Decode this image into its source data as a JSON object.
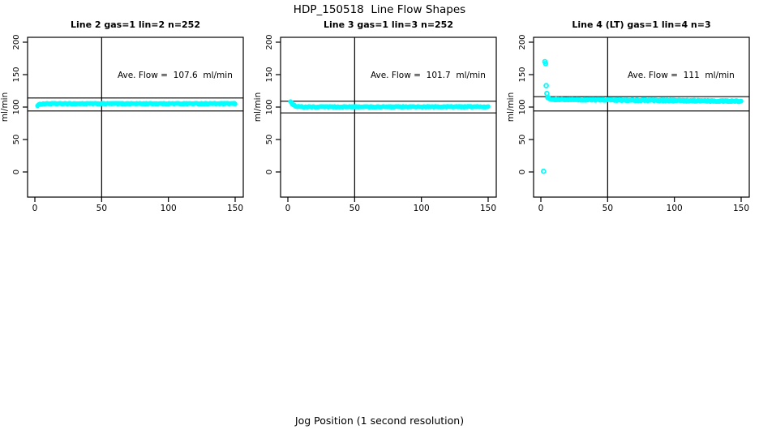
{
  "page": {
    "title": "HDP_150518  Line Flow Shapes",
    "xlabel": "Jog Position (1 second resolution)"
  },
  "colors": {
    "series": "#00FFFF",
    "axis": "#000000",
    "background": "#FFFFFF"
  },
  "axes": {
    "ylabel": "ml/min",
    "x_ticks": [
      0,
      50,
      100,
      150
    ],
    "y_ticks": [
      0,
      50,
      100,
      150,
      200
    ],
    "xlim": [
      0,
      155
    ],
    "ylim": [
      0,
      220
    ],
    "vline_x": 50
  },
  "chart_data": [
    {
      "type": "scatter",
      "title": "Line 2 gas=1 lin=2 n=252",
      "annotation": "Ave. Flow =  107.6  ml/min",
      "ave_flow": 107.6,
      "n": 252,
      "hlines": [
        114,
        94
      ],
      "x_range": [
        2,
        150
      ],
      "profile": [
        [
          2,
          102.5
        ],
        [
          4,
          104.5
        ],
        [
          7,
          105.2
        ],
        [
          150,
          105.3
        ]
      ],
      "outliers": [],
      "jitter": 0.7
    },
    {
      "type": "scatter",
      "title": "Line 3 gas=1 lin=3 n=252",
      "annotation": "Ave. Flow =  101.7  ml/min",
      "ave_flow": 101.7,
      "n": 252,
      "hlines": [
        109,
        91
      ],
      "x_range": [
        2,
        150
      ],
      "profile": [
        [
          2,
          109
        ],
        [
          3,
          105.5
        ],
        [
          6,
          101
        ],
        [
          12,
          100.3
        ],
        [
          150,
          100.5
        ]
      ],
      "outliers": [],
      "jitter": 0.7
    },
    {
      "type": "scatter",
      "title": "Line 4 (LT) gas=1 lin=4 n=3",
      "annotation": "Ave. Flow =  111  ml/min",
      "ave_flow": 111,
      "n": 3,
      "hlines": [
        116,
        94
      ],
      "x_range": [
        5,
        150
      ],
      "profile": [
        [
          5,
          115
        ],
        [
          7,
          112.5
        ],
        [
          15,
          111.5
        ],
        [
          50,
          111
        ],
        [
          100,
          110
        ],
        [
          150,
          109
        ]
      ],
      "outliers": [
        [
          2,
          1
        ],
        [
          3,
          170
        ],
        [
          3.5,
          167
        ],
        [
          4,
          133
        ],
        [
          4.5,
          121
        ]
      ],
      "jitter": 1.1
    }
  ]
}
